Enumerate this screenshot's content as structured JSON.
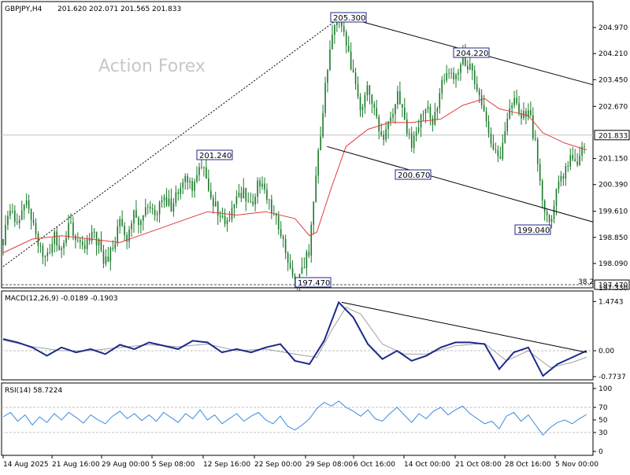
{
  "header": {
    "symbol": "GBPJPY,H4",
    "open": "201.620",
    "high": "202.071",
    "low": "201.565",
    "close": "201.833"
  },
  "watermark": "Action Forex",
  "chart_data": {
    "type": "candlestick",
    "price_axis": {
      "ticks": [
        "204.970",
        "204.210",
        "203.450",
        "202.670",
        "201.150",
        "200.390",
        "199.610",
        "198.850",
        "198.090"
      ],
      "current": "201.833",
      "fib_level": "197.470",
      "fib_label": "38.2",
      "bottom_partial": "197.330"
    },
    "x_labels": [
      "14 Aug 2025",
      "21 Aug 16:00",
      "29 Aug 00:00",
      "5 Sep 08:00",
      "12 Sep 16:00",
      "22 Sep 00:00",
      "29 Sep 08:00",
      "6 Oct 16:00",
      "14 Oct 00:00",
      "21 Oct 08:00",
      "28 Oct 16:00",
      "5 Nov 00:00"
    ],
    "callouts": [
      {
        "text": "205.300",
        "value": 205.3
      },
      {
        "text": "204.220",
        "value": 204.22
      },
      {
        "text": "201.240",
        "value": 201.24
      },
      {
        "text": "200.670",
        "value": 200.67
      },
      {
        "text": "199.040",
        "value": 199.04
      },
      {
        "text": "197.470",
        "value": 197.47
      }
    ],
    "price_path": [
      [
        0,
        198.8
      ],
      [
        5,
        199.6
      ],
      [
        10,
        199.2
      ],
      [
        15,
        199.9
      ],
      [
        20,
        199.3
      ],
      [
        25,
        198.6
      ],
      [
        30,
        198.2
      ],
      [
        35,
        198.9
      ],
      [
        40,
        198.5
      ],
      [
        45,
        199.2
      ],
      [
        50,
        198.9
      ],
      [
        55,
        198.4
      ],
      [
        60,
        199.0
      ],
      [
        65,
        198.7
      ],
      [
        70,
        198.1
      ],
      [
        75,
        198.5
      ],
      [
        80,
        199.3
      ],
      [
        85,
        198.8
      ],
      [
        90,
        199.6
      ],
      [
        95,
        199.2
      ],
      [
        100,
        199.9
      ],
      [
        105,
        199.4
      ],
      [
        110,
        200.1
      ],
      [
        115,
        199.7
      ],
      [
        120,
        200.2
      ],
      [
        125,
        200.7
      ],
      [
        130,
        200.1
      ],
      [
        135,
        201.2
      ],
      [
        140,
        200.3
      ],
      [
        145,
        199.8
      ],
      [
        150,
        199.3
      ],
      [
        155,
        199.5
      ],
      [
        160,
        199.9
      ],
      [
        165,
        200.2
      ],
      [
        170,
        199.7
      ],
      [
        175,
        200.5
      ],
      [
        180,
        200.2
      ],
      [
        185,
        199.6
      ],
      [
        190,
        199.1
      ],
      [
        195,
        198.3
      ],
      [
        200,
        197.6
      ],
      [
        205,
        197.9
      ],
      [
        210,
        198.5
      ],
      [
        215,
        200.8
      ],
      [
        220,
        202.9
      ],
      [
        225,
        204.7
      ],
      [
        230,
        205.2
      ],
      [
        235,
        204.5
      ],
      [
        240,
        203.6
      ],
      [
        245,
        202.5
      ],
      [
        250,
        203.3
      ],
      [
        255,
        202.4
      ],
      [
        260,
        201.6
      ],
      [
        265,
        202.2
      ],
      [
        270,
        203.0
      ],
      [
        275,
        202.3
      ],
      [
        280,
        201.5
      ],
      [
        285,
        202.2
      ],
      [
        290,
        202.8
      ],
      [
        295,
        202.1
      ],
      [
        300,
        203.3
      ],
      [
        305,
        203.7
      ],
      [
        310,
        203.4
      ],
      [
        315,
        204.1
      ],
      [
        320,
        203.8
      ],
      [
        325,
        203.2
      ],
      [
        330,
        202.3
      ],
      [
        335,
        201.6
      ],
      [
        340,
        201.0
      ],
      [
        345,
        202.2
      ],
      [
        350,
        202.9
      ],
      [
        355,
        202.3
      ],
      [
        360,
        202.6
      ],
      [
        365,
        201.5
      ],
      [
        370,
        199.6
      ],
      [
        375,
        199.2
      ],
      [
        380,
        200.3
      ],
      [
        385,
        200.8
      ],
      [
        390,
        201.2
      ],
      [
        395,
        201.1
      ],
      [
        400,
        201.8
      ]
    ],
    "ma_path": [
      [
        0,
        198.4
      ],
      [
        20,
        198.8
      ],
      [
        40,
        198.9
      ],
      [
        60,
        198.8
      ],
      [
        80,
        198.7
      ],
      [
        100,
        199.0
      ],
      [
        120,
        199.3
      ],
      [
        140,
        199.6
      ],
      [
        160,
        199.5
      ],
      [
        180,
        199.6
      ],
      [
        200,
        199.4
      ],
      [
        210,
        198.9
      ],
      [
        215,
        199.0
      ],
      [
        225,
        200.3
      ],
      [
        235,
        201.5
      ],
      [
        250,
        202.0
      ],
      [
        265,
        202.2
      ],
      [
        280,
        202.2
      ],
      [
        300,
        202.3
      ],
      [
        315,
        202.7
      ],
      [
        330,
        202.9
      ],
      [
        340,
        202.6
      ],
      [
        350,
        202.5
      ],
      [
        360,
        202.4
      ],
      [
        370,
        201.9
      ],
      [
        385,
        201.6
      ],
      [
        400,
        201.4
      ]
    ],
    "dotted_trend": {
      "from": [
        0,
        198.0
      ],
      "to": [
        232,
        205.3
      ]
    },
    "channel_upper": {
      "from": [
        232,
        205.3
      ],
      "to": [
        400,
        203.3
      ]
    },
    "channel_lower": {
      "from": [
        222,
        201.5
      ],
      "to": [
        400,
        199.3
      ]
    },
    "macd": {
      "title": "MACD(12,26,9) -0.0189 -0.1903",
      "ticks": [
        "1.4743",
        "0.00",
        "-0.7737"
      ],
      "tick_values": [
        1.4743,
        0.0,
        -0.7737
      ],
      "zero_label": "0.00",
      "main_path": [
        [
          0,
          0.35
        ],
        [
          10,
          0.25
        ],
        [
          20,
          0.1
        ],
        [
          30,
          -0.15
        ],
        [
          40,
          0.1
        ],
        [
          50,
          -0.05
        ],
        [
          60,
          0.05
        ],
        [
          70,
          -0.1
        ],
        [
          80,
          0.18
        ],
        [
          90,
          0.05
        ],
        [
          100,
          0.25
        ],
        [
          110,
          0.15
        ],
        [
          120,
          0.05
        ],
        [
          130,
          0.3
        ],
        [
          140,
          0.25
        ],
        [
          150,
          -0.05
        ],
        [
          160,
          0.05
        ],
        [
          170,
          -0.05
        ],
        [
          180,
          0.1
        ],
        [
          190,
          0.2
        ],
        [
          200,
          -0.3
        ],
        [
          210,
          -0.4
        ],
        [
          220,
          0.3
        ],
        [
          230,
          1.45
        ],
        [
          240,
          1.0
        ],
        [
          250,
          0.2
        ],
        [
          260,
          -0.25
        ],
        [
          270,
          0.0
        ],
        [
          280,
          -0.3
        ],
        [
          290,
          -0.15
        ],
        [
          300,
          0.1
        ],
        [
          310,
          0.25
        ],
        [
          320,
          0.25
        ],
        [
          330,
          0.2
        ],
        [
          340,
          -0.55
        ],
        [
          350,
          -0.05
        ],
        [
          360,
          0.1
        ],
        [
          370,
          -0.75
        ],
        [
          380,
          -0.4
        ],
        [
          390,
          -0.2
        ],
        [
          400,
          0.0
        ]
      ],
      "signal_path": [
        [
          0,
          0.32
        ],
        [
          20,
          0.12
        ],
        [
          40,
          0.0
        ],
        [
          60,
          0.0
        ],
        [
          80,
          0.1
        ],
        [
          100,
          0.18
        ],
        [
          120,
          0.12
        ],
        [
          140,
          0.2
        ],
        [
          160,
          0.0
        ],
        [
          180,
          0.05
        ],
        [
          200,
          -0.1
        ],
        [
          215,
          -0.2
        ],
        [
          225,
          0.6
        ],
        [
          235,
          1.3
        ],
        [
          245,
          1.1
        ],
        [
          260,
          0.2
        ],
        [
          275,
          -0.1
        ],
        [
          290,
          -0.1
        ],
        [
          310,
          0.15
        ],
        [
          330,
          0.22
        ],
        [
          345,
          -0.3
        ],
        [
          360,
          0.0
        ],
        [
          375,
          -0.5
        ],
        [
          390,
          -0.35
        ],
        [
          400,
          -0.19
        ]
      ],
      "trend": {
        "from": [
          232,
          1.45
        ],
        "to": [
          400,
          -0.05
        ]
      }
    },
    "rsi": {
      "title": "RSI(14) 58.7224",
      "ticks": [
        "100",
        "70",
        "50",
        "30",
        "0"
      ],
      "tick_values": [
        100,
        70,
        50,
        30,
        0
      ],
      "levels": [
        70,
        30
      ],
      "path": [
        [
          0,
          55
        ],
        [
          5,
          62
        ],
        [
          10,
          48
        ],
        [
          15,
          58
        ],
        [
          20,
          42
        ],
        [
          25,
          55
        ],
        [
          30,
          46
        ],
        [
          35,
          60
        ],
        [
          40,
          50
        ],
        [
          45,
          62
        ],
        [
          50,
          54
        ],
        [
          55,
          45
        ],
        [
          60,
          58
        ],
        [
          65,
          50
        ],
        [
          70,
          44
        ],
        [
          75,
          56
        ],
        [
          80,
          64
        ],
        [
          85,
          52
        ],
        [
          90,
          60
        ],
        [
          95,
          49
        ],
        [
          100,
          58
        ],
        [
          105,
          48
        ],
        [
          110,
          62
        ],
        [
          115,
          54
        ],
        [
          120,
          46
        ],
        [
          125,
          60
        ],
        [
          130,
          52
        ],
        [
          135,
          66
        ],
        [
          140,
          50
        ],
        [
          145,
          58
        ],
        [
          150,
          44
        ],
        [
          155,
          52
        ],
        [
          160,
          60
        ],
        [
          165,
          48
        ],
        [
          170,
          56
        ],
        [
          175,
          62
        ],
        [
          180,
          50
        ],
        [
          185,
          44
        ],
        [
          190,
          56
        ],
        [
          195,
          40
        ],
        [
          200,
          34
        ],
        [
          205,
          42
        ],
        [
          210,
          52
        ],
        [
          215,
          68
        ],
        [
          220,
          78
        ],
        [
          225,
          72
        ],
        [
          230,
          80
        ],
        [
          235,
          70
        ],
        [
          240,
          64
        ],
        [
          245,
          56
        ],
        [
          250,
          66
        ],
        [
          255,
          52
        ],
        [
          260,
          48
        ],
        [
          265,
          60
        ],
        [
          270,
          70
        ],
        [
          275,
          58
        ],
        [
          280,
          46
        ],
        [
          285,
          60
        ],
        [
          290,
          52
        ],
        [
          295,
          64
        ],
        [
          300,
          70
        ],
        [
          305,
          58
        ],
        [
          310,
          66
        ],
        [
          315,
          72
        ],
        [
          320,
          60
        ],
        [
          325,
          52
        ],
        [
          330,
          44
        ],
        [
          335,
          48
        ],
        [
          340,
          36
        ],
        [
          345,
          56
        ],
        [
          350,
          62
        ],
        [
          355,
          48
        ],
        [
          360,
          58
        ],
        [
          365,
          42
        ],
        [
          370,
          26
        ],
        [
          375,
          38
        ],
        [
          380,
          46
        ],
        [
          385,
          50
        ],
        [
          390,
          44
        ],
        [
          395,
          52
        ],
        [
          400,
          58.7
        ]
      ]
    }
  },
  "colors": {
    "candle": "#1a7a2a",
    "ma": "#e23b3b",
    "macd_main": "#1c2a8a",
    "macd_signal": "#a0a0a0",
    "rsi": "#3a8be0",
    "trendline": "#000000",
    "panel_border": "#000000",
    "grid": "#c0c0c0"
  }
}
